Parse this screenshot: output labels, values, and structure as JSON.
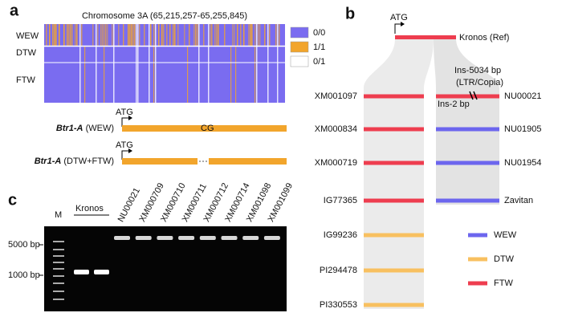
{
  "panel_a": {
    "label": "a",
    "title": "Chromosome 3A (65,215,257-65,255,845)",
    "groups": [
      "WEW",
      "DTW",
      "FTW"
    ],
    "legend": [
      {
        "label": "0/0",
        "color": "#7a6cf0"
      },
      {
        "label": "1/1",
        "color": "#f2a52c"
      },
      {
        "label": "0/1",
        "color": "#ffffff"
      }
    ],
    "gene_models": [
      {
        "gene": "Btr1-A",
        "group": "(WEW)",
        "start": "ATG",
        "snp": "CG"
      },
      {
        "gene": "Btr1-A",
        "group": "(DTW+FTW)",
        "start": "ATG"
      }
    ]
  },
  "panel_b": {
    "label": "b",
    "reference": {
      "name": "Kronos (Ref)",
      "start": "ATG",
      "color": "#ee3d4f"
    },
    "left": [
      {
        "name": "XM001097",
        "color": "#ee3d4f"
      },
      {
        "name": "XM000834",
        "color": "#ee3d4f"
      },
      {
        "name": "XM000719",
        "color": "#ee3d4f"
      },
      {
        "name": "IG77365",
        "color": "#ee3d4f"
      },
      {
        "name": "IG99236",
        "color": "#f8c060"
      },
      {
        "name": "PI294478",
        "color": "#f8c060"
      },
      {
        "name": "PI330553",
        "color": "#f8c060"
      }
    ],
    "right": [
      {
        "name": "NU00021",
        "color": "#ee3d4f"
      },
      {
        "name": "NU01905",
        "color": "#6c66ee"
      },
      {
        "name": "NU01954",
        "color": "#6c66ee"
      },
      {
        "name": "Zavitan",
        "color": "#6c66ee"
      }
    ],
    "annotations": [
      "Ins-5034 bp",
      "(LTR/Copia)",
      "Ins-2 bp"
    ],
    "legend": [
      {
        "label": "WEW",
        "color": "#6c66ee"
      },
      {
        "label": "DTW",
        "color": "#f8c060"
      },
      {
        "label": "FTW",
        "color": "#ee3d4f"
      }
    ]
  },
  "panel_c": {
    "label": "c",
    "marker": "M",
    "control": "Kronos",
    "lanes": [
      "NU00021",
      "XM000709",
      "XM000710",
      "XM000711",
      "XM000712",
      "XM000714",
      "XM001098",
      "XM001099"
    ],
    "ladder": [
      "5000 bp",
      "1000 bp"
    ]
  }
}
